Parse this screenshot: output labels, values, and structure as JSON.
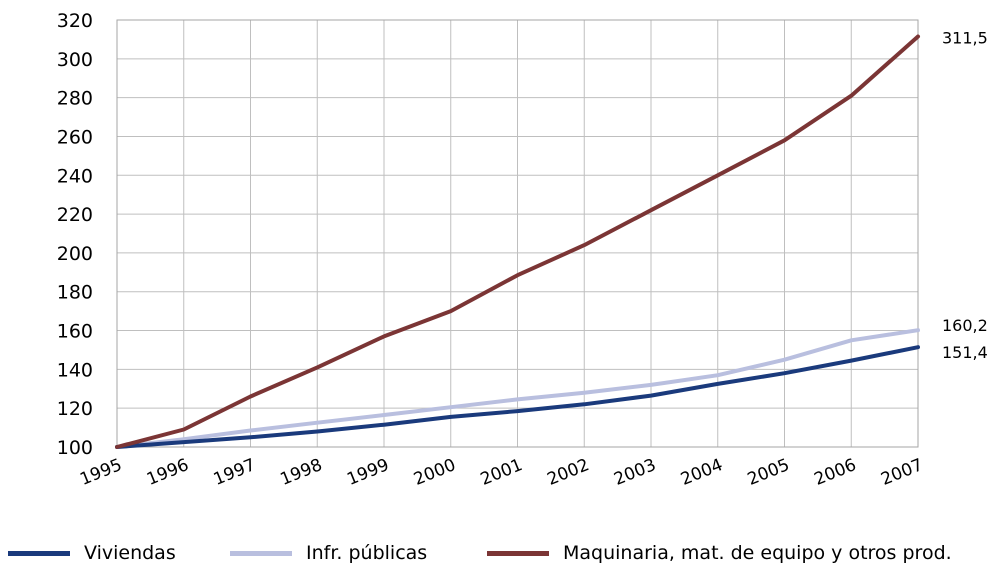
{
  "chart_data": {
    "type": "line",
    "title": "",
    "xlabel": "",
    "ylabel": "",
    "x": [
      "1995",
      "1996",
      "1997",
      "1998",
      "1999",
      "2000",
      "2001",
      "2002",
      "2003",
      "2004",
      "2005",
      "2006",
      "2007"
    ],
    "ylim": [
      100,
      320
    ],
    "yticks": [
      "100",
      "120",
      "140",
      "160",
      "180",
      "200",
      "220",
      "240",
      "260",
      "280",
      "300",
      "320"
    ],
    "grid": true,
    "legend_position": "bottom",
    "series": [
      {
        "name": "Viviendas",
        "color": "#1a3a7c",
        "values": [
          100,
          102.5,
          105,
          108,
          111.5,
          115.5,
          118.5,
          122,
          126.5,
          132.5,
          138,
          144.5,
          151.4
        ],
        "end_label": "151,4"
      },
      {
        "name": "Infr. públicas",
        "color": "#b9bfdf",
        "values": [
          100,
          104,
          108.5,
          112.5,
          116.5,
          120.5,
          124.5,
          128,
          132,
          137,
          145,
          155,
          160.2
        ],
        "end_label": "160,2"
      },
      {
        "name": "Maquinaria, mat. de equipo y otros prod.",
        "color": "#7b3535",
        "values": [
          100,
          109,
          126,
          141,
          157,
          170,
          188.5,
          204,
          222,
          240,
          258,
          281,
          311.5
        ],
        "end_label": "311,5"
      }
    ]
  }
}
